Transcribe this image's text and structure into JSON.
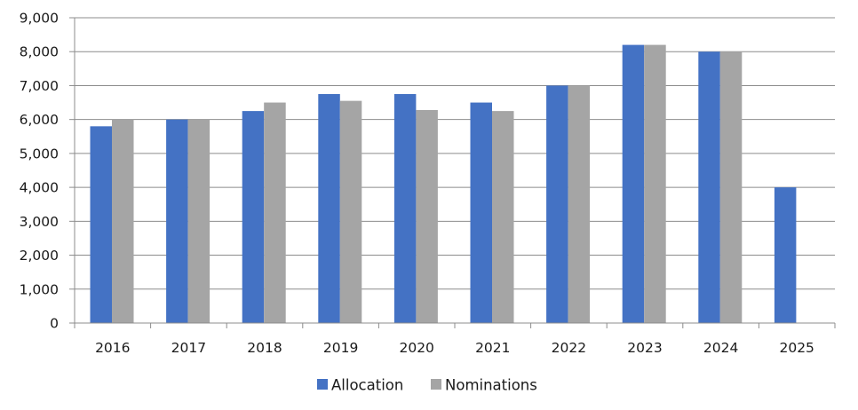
{
  "chart_data": {
    "type": "bar",
    "categories": [
      "2016",
      "2017",
      "2018",
      "2019",
      "2020",
      "2021",
      "2022",
      "2023",
      "2024",
      "2025"
    ],
    "series": [
      {
        "name": "Allocation",
        "color": "#4472C4",
        "values": [
          5800,
          6000,
          6250,
          6750,
          6750,
          6500,
          7000,
          8200,
          8000,
          4000
        ]
      },
      {
        "name": "Nominations",
        "color": "#A5A5A5",
        "values": [
          6000,
          6000,
          6500,
          6550,
          6280,
          6250,
          7000,
          8200,
          8000,
          null
        ]
      }
    ],
    "ylim": [
      0,
      9000
    ],
    "yticks": [
      "0",
      "1,000",
      "2,000",
      "3,000",
      "4,000",
      "5,000",
      "6,000",
      "7,000",
      "8,000",
      "9,000"
    ],
    "grid": true,
    "legend_position": "bottom"
  }
}
